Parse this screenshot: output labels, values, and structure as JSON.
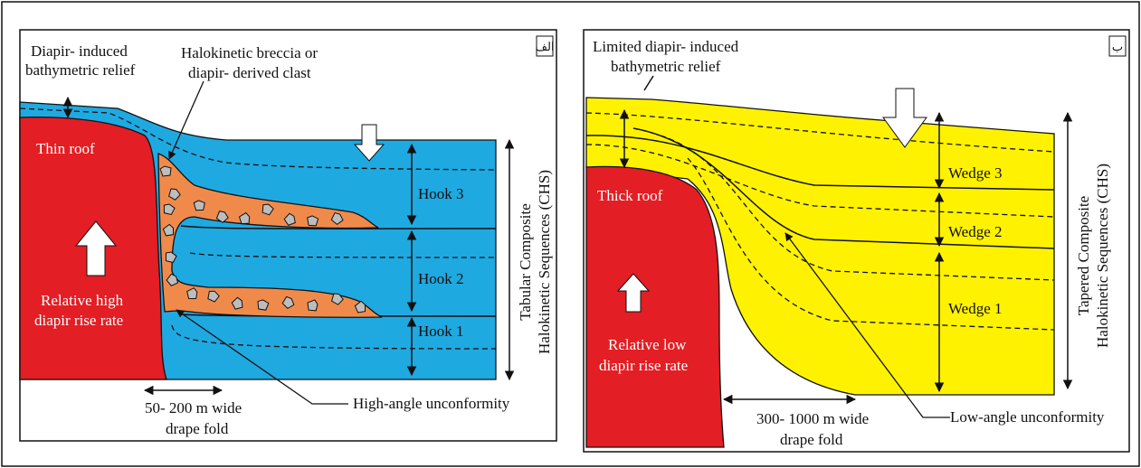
{
  "panels": [
    {
      "label": "الف",
      "relief": [
        "Diapir- induced",
        "bathymetric relief"
      ],
      "clast": [
        "Halokinetic breccia or",
        "diapir- derived clast"
      ],
      "roof": "Thin roof",
      "units": [
        "Hook 3",
        "Hook 2",
        "Hook 1"
      ],
      "rate": [
        "Relative high",
        "diapir rise rate"
      ],
      "sequence": [
        "Tabular Composite",
        "Halokinetic Sequences (CHS)"
      ],
      "fold": [
        "50- 200 m wide",
        "drape fold"
      ],
      "unconformity": "High-angle unconformity"
    },
    {
      "label": "ب",
      "relief": [
        "Limited diapir- induced",
        "bathymetric relief"
      ],
      "roof": "Thick roof",
      "units": [
        "Wedge 3",
        "Wedge 2",
        "Wedge 1"
      ],
      "rate": [
        "Relative low",
        "diapir rise rate"
      ],
      "sequence": [
        "Tapered Composite",
        "Halokinetic Sequences (CHS)"
      ],
      "fold": [
        "300- 1000 m wide",
        "drape fold"
      ],
      "unconformity": "Low-angle unconformity"
    }
  ]
}
